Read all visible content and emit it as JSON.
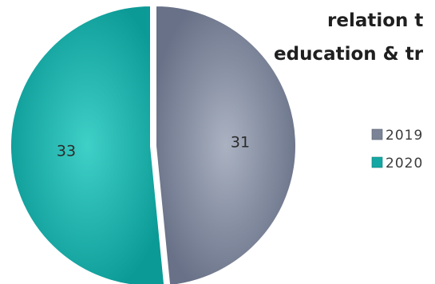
{
  "chart_data": {
    "type": "pie",
    "title_lines": [
      "relation t",
      "education & tr"
    ],
    "categories": [
      "2019",
      "2020"
    ],
    "values": [
      31,
      33
    ],
    "data_labels": [
      "31",
      "33"
    ],
    "colors": [
      "#7b8497",
      "#14a7a3"
    ],
    "legend": {
      "placement": "right",
      "entries": [
        "2019",
        "2020"
      ]
    }
  }
}
